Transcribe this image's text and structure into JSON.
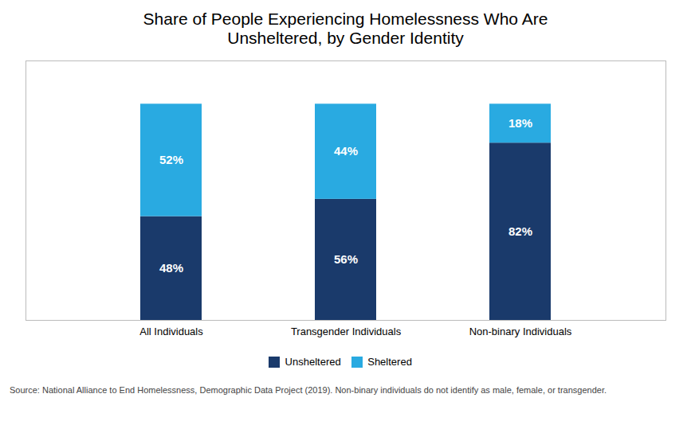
{
  "chart_data": {
    "type": "bar",
    "title": "Share of People Experiencing Homelessness Who Are\nUnsheltered, by Gender Identity",
    "categories": [
      "All Individuals",
      "Transgender Individuals",
      "Non-binary Individuals"
    ],
    "series": [
      {
        "name": "Unsheltered",
        "color": "#1a3a6b",
        "values": [
          48,
          56,
          82
        ],
        "value_labels": [
          "48%",
          "56%",
          "82%"
        ]
      },
      {
        "name": "Sheltered",
        "color": "#29aae1",
        "values": [
          52,
          44,
          18
        ],
        "value_labels": [
          "52%",
          "44%",
          "18%"
        ]
      }
    ],
    "stacked": true,
    "data_labels": true,
    "tick_labels": "x",
    "legend": "bottom",
    "ylim": [
      0,
      120
    ],
    "yticks": [],
    "grid": false,
    "caption": "Source: National Alliance to End Homelessness, Demographic Data Project (2019). Non-binary individuals do not identify as male, female, or transgender."
  }
}
